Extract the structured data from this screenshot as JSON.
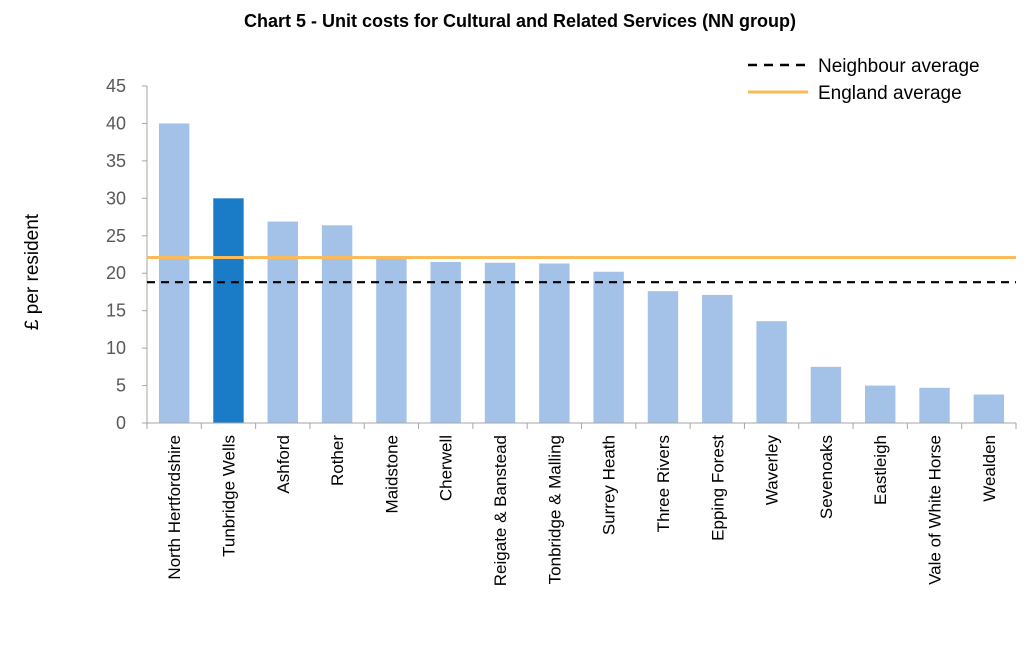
{
  "chart_data": {
    "type": "bar",
    "title": "Chart 5 - Unit costs for Cultural and Related Services (NN group)",
    "ylabel": "£ per resident",
    "xlabel": "",
    "ylim": [
      0,
      45
    ],
    "yticks": [
      0,
      5,
      10,
      15,
      20,
      25,
      30,
      35,
      40,
      45
    ],
    "grid": false,
    "legend_position": "top-right",
    "categories": [
      "North Hertfordshire",
      "Tunbridge Wells",
      "Ashford",
      "Rother",
      "Maidstone",
      "Cherwell",
      "Reigate & Banstead",
      "Tonbridge & Malling",
      "Surrey Heath",
      "Three Rivers",
      "Epping Forest",
      "Waverley",
      "Sevenoaks",
      "Eastleigh",
      "Vale of White Horse",
      "Wealden"
    ],
    "values": [
      40.0,
      30.0,
      26.9,
      26.4,
      22.0,
      21.5,
      21.4,
      21.3,
      20.2,
      17.6,
      17.1,
      13.6,
      7.5,
      5.0,
      4.7,
      3.8
    ],
    "highlight_index": 1,
    "bar_color": "#a4c2e8",
    "highlight_color": "#1a7cc7",
    "reference_lines": [
      {
        "name": "Neighbour average",
        "value": 18.8,
        "style": "dashed",
        "color": "#000000"
      },
      {
        "name": "England average",
        "value": 22.1,
        "style": "solid",
        "color": "#fbbb5a"
      }
    ]
  }
}
